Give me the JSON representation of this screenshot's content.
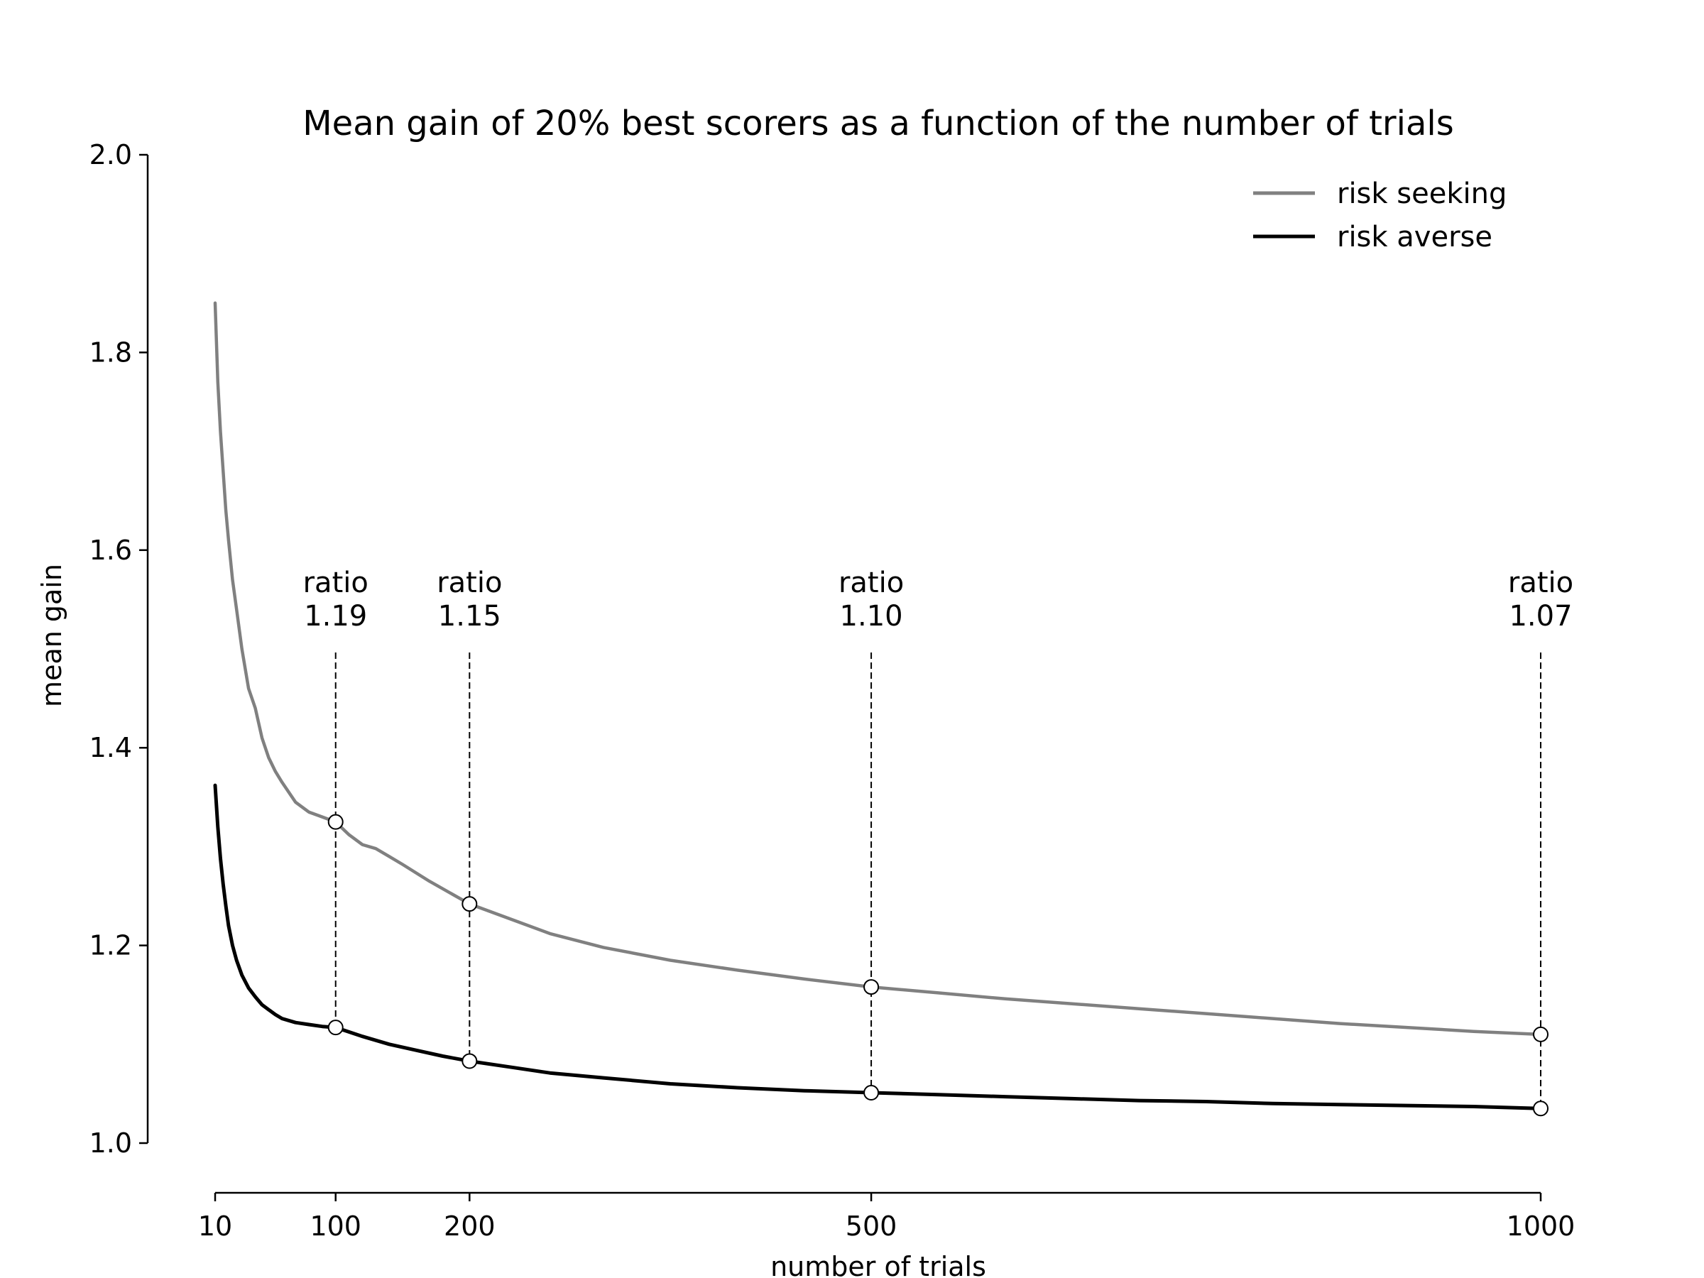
{
  "chart_data": {
    "type": "line",
    "title": "Mean gain of 20% best scorers as a function of the number of trials",
    "xlabel": "number of trials",
    "ylabel": "mean gain",
    "xlim": [
      10,
      1000
    ],
    "ylim": [
      1.0,
      2.0
    ],
    "xticks": [
      10,
      100,
      200,
      500,
      1000
    ],
    "xtick_labels": [
      "10",
      "100",
      "200",
      "500",
      "1000"
    ],
    "yticks": [
      1.0,
      1.2,
      1.4,
      1.6,
      1.8,
      2.0
    ],
    "ytick_labels": [
      "1.0",
      "1.2",
      "1.4",
      "1.6",
      "1.8",
      "2.0"
    ],
    "grid": false,
    "legend_position": "top-right",
    "series": [
      {
        "name": "risk seeking",
        "color": "#808080",
        "x": [
          10,
          12,
          14,
          16,
          18,
          20,
          23,
          26,
          30,
          35,
          40,
          45,
          50,
          55,
          60,
          70,
          80,
          90,
          100,
          110,
          120,
          130,
          140,
          150,
          170,
          200,
          230,
          260,
          300,
          350,
          400,
          450,
          500,
          550,
          600,
          650,
          700,
          750,
          800,
          850,
          900,
          950,
          1000
        ],
        "y": [
          1.85,
          1.77,
          1.72,
          1.68,
          1.64,
          1.61,
          1.57,
          1.54,
          1.5,
          1.46,
          1.44,
          1.41,
          1.39,
          1.376,
          1.365,
          1.345,
          1.335,
          1.33,
          1.325,
          1.312,
          1.302,
          1.298,
          1.29,
          1.282,
          1.265,
          1.242,
          1.227,
          1.212,
          1.198,
          1.185,
          1.175,
          1.166,
          1.158,
          1.152,
          1.146,
          1.141,
          1.136,
          1.131,
          1.126,
          1.121,
          1.117,
          1.113,
          1.11
        ]
      },
      {
        "name": "risk averse",
        "color": "#000000",
        "x": [
          10,
          12,
          14,
          16,
          18,
          20,
          23,
          26,
          30,
          35,
          40,
          45,
          50,
          55,
          60,
          70,
          80,
          90,
          100,
          120,
          140,
          160,
          180,
          200,
          230,
          260,
          300,
          350,
          400,
          450,
          500,
          550,
          600,
          650,
          700,
          750,
          800,
          850,
          900,
          950,
          1000
        ],
        "y": [
          1.362,
          1.32,
          1.288,
          1.262,
          1.24,
          1.22,
          1.2,
          1.185,
          1.17,
          1.157,
          1.148,
          1.14,
          1.135,
          1.13,
          1.126,
          1.122,
          1.12,
          1.118,
          1.117,
          1.108,
          1.1,
          1.094,
          1.088,
          1.083,
          1.077,
          1.071,
          1.066,
          1.06,
          1.056,
          1.053,
          1.051,
          1.049,
          1.047,
          1.045,
          1.043,
          1.042,
          1.04,
          1.039,
          1.038,
          1.037,
          1.035
        ]
      }
    ],
    "markers": [
      {
        "x": 100,
        "seeking": 1.325,
        "averse": 1.117,
        "label_top": "ratio",
        "label_bottom": "1.19"
      },
      {
        "x": 200,
        "seeking": 1.242,
        "averse": 1.083,
        "label_top": "ratio",
        "label_bottom": "1.15"
      },
      {
        "x": 500,
        "seeking": 1.158,
        "averse": 1.051,
        "label_top": "ratio",
        "label_bottom": "1.10"
      },
      {
        "x": 1000,
        "seeking": 1.11,
        "averse": 1.035,
        "label_top": "ratio",
        "label_bottom": "1.07"
      }
    ],
    "annotation_y": 1.5
  }
}
